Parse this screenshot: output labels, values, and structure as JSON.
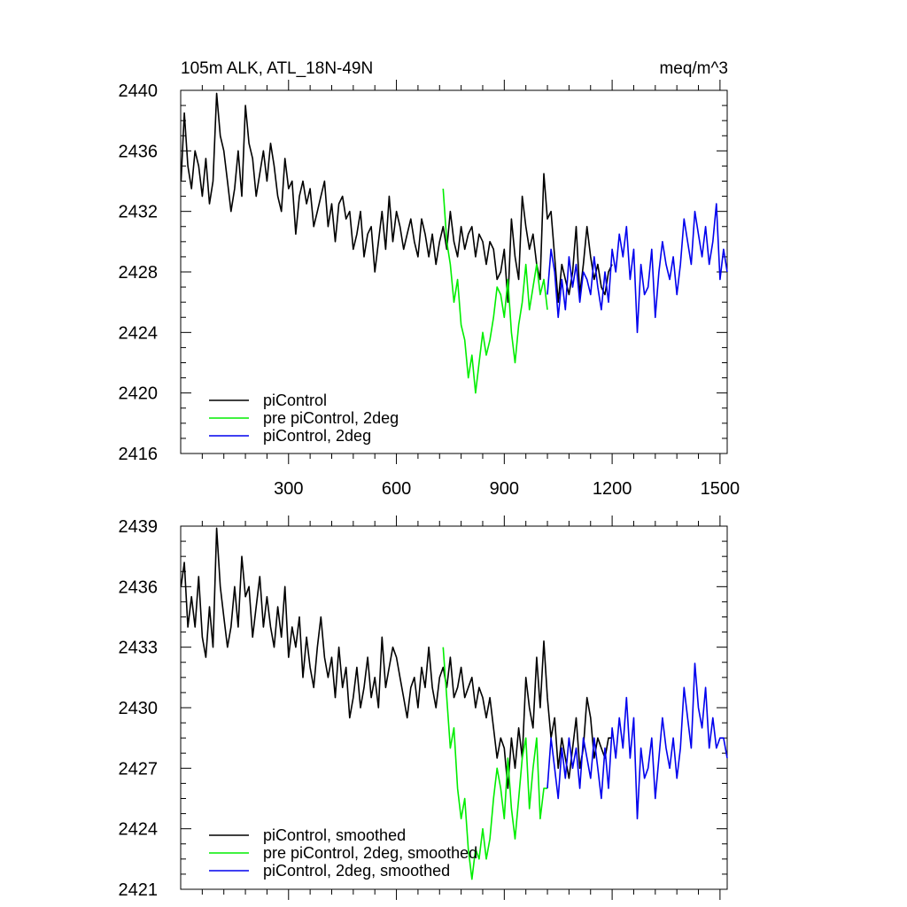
{
  "chart_data": [
    {
      "type": "line",
      "title": "105m ALK, ATL_18N-49N",
      "units": "meq/m^3",
      "xlim": [
        0,
        1520
      ],
      "ylim": [
        2416,
        2440
      ],
      "yticks": [
        2416,
        2420,
        2424,
        2428,
        2432,
        2436,
        2440
      ],
      "xticks": [
        300,
        600,
        900,
        1200,
        1500
      ],
      "series": [
        {
          "name": "piControl",
          "color": "#000000",
          "x": [
            1,
            10,
            20,
            30,
            40,
            50,
            60,
            70,
            80,
            90,
            100,
            110,
            120,
            130,
            140,
            150,
            160,
            170,
            180,
            190,
            200,
            210,
            220,
            230,
            240,
            250,
            260,
            270,
            280,
            290,
            300,
            310,
            320,
            330,
            340,
            350,
            360,
            370,
            380,
            390,
            400,
            410,
            420,
            430,
            440,
            450,
            460,
            470,
            480,
            490,
            500,
            510,
            520,
            530,
            540,
            550,
            560,
            570,
            580,
            590,
            600,
            610,
            620,
            630,
            640,
            650,
            660,
            670,
            680,
            690,
            700,
            710,
            720,
            730,
            740,
            750,
            760,
            770,
            780,
            790,
            800,
            810,
            820,
            830,
            840,
            850,
            860,
            870,
            880,
            890,
            900,
            910,
            920,
            930,
            940,
            950,
            960,
            970,
            980,
            990,
            1000,
            1010,
            1020,
            1030,
            1040,
            1050,
            1060,
            1070,
            1080,
            1090,
            1100,
            1110,
            1120,
            1130,
            1140,
            1150,
            1160,
            1170,
            1180,
            1190,
            1200
          ],
          "values": [
            2434.0,
            2438.5,
            2435.0,
            2433.5,
            2436.0,
            2435.0,
            2433.0,
            2435.5,
            2432.5,
            2434.0,
            2439.8,
            2437.0,
            2436.0,
            2434.0,
            2432.0,
            2433.5,
            2436.0,
            2433.0,
            2439.0,
            2436.5,
            2435.5,
            2433.0,
            2434.5,
            2436.0,
            2434.0,
            2436.5,
            2435.0,
            2433.0,
            2432.0,
            2435.5,
            2433.5,
            2434.0,
            2430.5,
            2433.0,
            2434.0,
            2432.5,
            2433.5,
            2431.0,
            2432.0,
            2433.0,
            2434.0,
            2431.0,
            2432.5,
            2430.0,
            2432.5,
            2433.0,
            2431.5,
            2432.0,
            2429.5,
            2430.5,
            2432.0,
            2429.0,
            2430.5,
            2431.0,
            2428.0,
            2430.0,
            2432.0,
            2429.5,
            2433.0,
            2430.0,
            2432.0,
            2431.0,
            2429.5,
            2430.5,
            2431.5,
            2430.0,
            2429.0,
            2431.5,
            2430.5,
            2429.0,
            2430.5,
            2428.5,
            2430.0,
            2431.0,
            2429.5,
            2432.0,
            2430.0,
            2429.0,
            2431.0,
            2429.5,
            2430.5,
            2431.0,
            2429.0,
            2430.5,
            2430.0,
            2428.5,
            2430.0,
            2429.5,
            2427.5,
            2428.0,
            2429.5,
            2426.0,
            2431.5,
            2429.0,
            2427.5,
            2433.0,
            2431.0,
            2429.5,
            2430.5,
            2428.5,
            2427.5,
            2434.5,
            2431.5,
            2432.0,
            2429.0,
            2426.0,
            2428.5,
            2427.5,
            2426.5,
            2428.0,
            2431.0,
            2426.5,
            2428.5,
            2431.0,
            2429.0,
            2427.5,
            2428.5,
            2427.0,
            2426.5,
            2428.0,
            2428.5
          ]
        },
        {
          "name": "pre piControl, 2deg",
          "color": "#00ee00",
          "x": [
            730,
            740,
            750,
            760,
            770,
            780,
            790,
            800,
            810,
            820,
            830,
            840,
            850,
            860,
            870,
            880,
            890,
            900,
            910,
            920,
            930,
            940,
            950,
            960,
            970,
            980,
            990,
            1000,
            1010,
            1020
          ],
          "values": [
            2433.5,
            2430.0,
            2428.5,
            2426.0,
            2427.5,
            2424.5,
            2423.5,
            2421.0,
            2422.5,
            2420.0,
            2422.0,
            2424.0,
            2422.5,
            2423.5,
            2425.0,
            2427.0,
            2426.5,
            2425.0,
            2427.5,
            2424.0,
            2422.0,
            2424.5,
            2426.0,
            2428.5,
            2425.5,
            2427.0,
            2428.5,
            2426.5,
            2427.5,
            2425.5
          ]
        },
        {
          "name": "piControl, 2deg",
          "color": "#0000ee",
          "x": [
            1020,
            1030,
            1040,
            1050,
            1060,
            1070,
            1080,
            1090,
            1100,
            1110,
            1120,
            1130,
            1140,
            1150,
            1160,
            1170,
            1180,
            1190,
            1200,
            1210,
            1220,
            1230,
            1240,
            1250,
            1260,
            1270,
            1280,
            1290,
            1300,
            1310,
            1320,
            1330,
            1340,
            1350,
            1360,
            1370,
            1380,
            1390,
            1400,
            1410,
            1420,
            1430,
            1440,
            1450,
            1460,
            1470,
            1480,
            1490,
            1500,
            1510,
            1520
          ],
          "values": [
            2426.5,
            2429.5,
            2428.0,
            2425.0,
            2427.5,
            2425.5,
            2429.0,
            2427.0,
            2428.5,
            2426.0,
            2428.0,
            2427.5,
            2426.5,
            2429.0,
            2427.0,
            2425.5,
            2428.0,
            2426.0,
            2429.5,
            2428.0,
            2430.5,
            2429.0,
            2431.0,
            2427.5,
            2429.5,
            2424.0,
            2428.5,
            2426.5,
            2427.0,
            2429.5,
            2425.0,
            2428.0,
            2430.0,
            2428.5,
            2427.5,
            2429.0,
            2426.5,
            2428.5,
            2431.5,
            2430.0,
            2428.5,
            2432.0,
            2430.5,
            2429.0,
            2431.0,
            2428.5,
            2430.0,
            2432.5,
            2427.5,
            2429.5,
            2428.0
          ]
        }
      ]
    },
    {
      "type": "line",
      "xlim": [
        0,
        1520
      ],
      "ylim": [
        2421,
        2439
      ],
      "yticks": [
        2421,
        2424,
        2427,
        2430,
        2433,
        2436,
        2439
      ],
      "series": [
        {
          "name": "piControl, smoothed",
          "color": "#000000",
          "x": [
            1,
            10,
            20,
            30,
            40,
            50,
            60,
            70,
            80,
            90,
            100,
            110,
            120,
            130,
            140,
            150,
            160,
            170,
            180,
            190,
            200,
            210,
            220,
            230,
            240,
            250,
            260,
            270,
            280,
            290,
            300,
            310,
            320,
            330,
            340,
            350,
            360,
            370,
            380,
            390,
            400,
            410,
            420,
            430,
            440,
            450,
            460,
            470,
            480,
            490,
            500,
            510,
            520,
            530,
            540,
            550,
            560,
            570,
            580,
            590,
            600,
            610,
            620,
            630,
            640,
            650,
            660,
            670,
            680,
            690,
            700,
            710,
            720,
            730,
            740,
            750,
            760,
            770,
            780,
            790,
            800,
            810,
            820,
            830,
            840,
            850,
            860,
            870,
            880,
            890,
            900,
            910,
            920,
            930,
            940,
            950,
            960,
            970,
            980,
            990,
            1000,
            1010,
            1020,
            1030,
            1040,
            1050,
            1060,
            1070,
            1080,
            1090,
            1100,
            1110,
            1120,
            1130,
            1140,
            1150,
            1160,
            1170,
            1180,
            1190,
            1200
          ],
          "values": [
            2436.0,
            2437.2,
            2434.0,
            2435.5,
            2434.0,
            2436.5,
            2433.5,
            2432.5,
            2435.0,
            2433.0,
            2438.9,
            2436.0,
            2434.5,
            2433.0,
            2434.0,
            2436.0,
            2434.0,
            2437.5,
            2435.5,
            2436.0,
            2433.5,
            2435.0,
            2436.5,
            2434.0,
            2435.5,
            2434.0,
            2433.0,
            2435.0,
            2433.5,
            2436.0,
            2432.5,
            2434.0,
            2433.0,
            2434.5,
            2431.5,
            2433.5,
            2432.0,
            2431.0,
            2433.0,
            2434.5,
            2432.5,
            2431.5,
            2432.5,
            2430.5,
            2433.0,
            2431.0,
            2432.0,
            2429.5,
            2430.5,
            2432.0,
            2430.0,
            2431.0,
            2432.5,
            2430.5,
            2431.5,
            2430.0,
            2433.5,
            2431.0,
            2432.0,
            2433.0,
            2432.5,
            2431.5,
            2430.5,
            2429.5,
            2431.0,
            2431.5,
            2430.0,
            2432.0,
            2431.0,
            2433.0,
            2431.0,
            2430.0,
            2431.5,
            2432.0,
            2431.0,
            2432.5,
            2430.5,
            2431.0,
            2432.0,
            2430.5,
            2431.0,
            2431.5,
            2430.0,
            2431.0,
            2430.5,
            2429.5,
            2430.5,
            2429.0,
            2427.5,
            2428.5,
            2428.0,
            2426.0,
            2428.5,
            2427.0,
            2429.0,
            2427.5,
            2431.5,
            2430.0,
            2429.0,
            2432.5,
            2430.0,
            2433.3,
            2430.5,
            2428.5,
            2429.5,
            2427.0,
            2428.5,
            2427.5,
            2426.5,
            2428.0,
            2429.5,
            2427.0,
            2428.0,
            2430.5,
            2429.5,
            2427.5,
            2428.5,
            2428.0,
            2427.5,
            2428.5,
            2428.5
          ]
        },
        {
          "name": "pre piControl, 2deg, smoothed",
          "color": "#00ee00",
          "x": [
            730,
            740,
            750,
            760,
            770,
            780,
            790,
            800,
            810,
            820,
            830,
            840,
            850,
            860,
            870,
            880,
            890,
            900,
            910,
            920,
            930,
            940,
            950,
            960,
            970,
            980,
            990,
            1000,
            1010,
            1020
          ],
          "values": [
            2433.0,
            2430.5,
            2428.0,
            2429.0,
            2426.0,
            2424.5,
            2425.5,
            2423.0,
            2421.5,
            2423.0,
            2422.5,
            2424.0,
            2422.5,
            2423.5,
            2425.5,
            2427.0,
            2426.0,
            2424.5,
            2427.5,
            2425.0,
            2423.5,
            2425.5,
            2427.5,
            2428.5,
            2425.0,
            2427.0,
            2428.5,
            2424.5,
            2426.0,
            2426.0
          ]
        },
        {
          "name": "piControl, 2deg, smoothed",
          "color": "#0000ee",
          "x": [
            1020,
            1030,
            1040,
            1050,
            1060,
            1070,
            1080,
            1090,
            1100,
            1110,
            1120,
            1130,
            1140,
            1150,
            1160,
            1170,
            1180,
            1190,
            1200,
            1210,
            1220,
            1230,
            1240,
            1250,
            1260,
            1270,
            1280,
            1290,
            1300,
            1310,
            1320,
            1330,
            1340,
            1350,
            1360,
            1370,
            1380,
            1390,
            1400,
            1410,
            1420,
            1430,
            1440,
            1450,
            1460,
            1470,
            1480,
            1490,
            1500,
            1510,
            1520
          ],
          "values": [
            2426.0,
            2428.5,
            2427.0,
            2425.5,
            2428.0,
            2426.5,
            2428.5,
            2427.0,
            2428.0,
            2426.0,
            2428.5,
            2427.5,
            2426.5,
            2428.5,
            2427.0,
            2425.5,
            2428.0,
            2426.0,
            2429.0,
            2427.5,
            2429.5,
            2428.0,
            2430.5,
            2427.5,
            2429.5,
            2424.5,
            2428.0,
            2426.5,
            2427.0,
            2428.5,
            2425.5,
            2427.5,
            2429.5,
            2428.0,
            2427.0,
            2428.5,
            2426.5,
            2428.0,
            2431.0,
            2429.5,
            2428.0,
            2432.2,
            2430.0,
            2429.0,
            2431.0,
            2428.0,
            2429.5,
            2428.0,
            2428.5,
            2428.5,
            2427.5
          ]
        }
      ]
    }
  ]
}
